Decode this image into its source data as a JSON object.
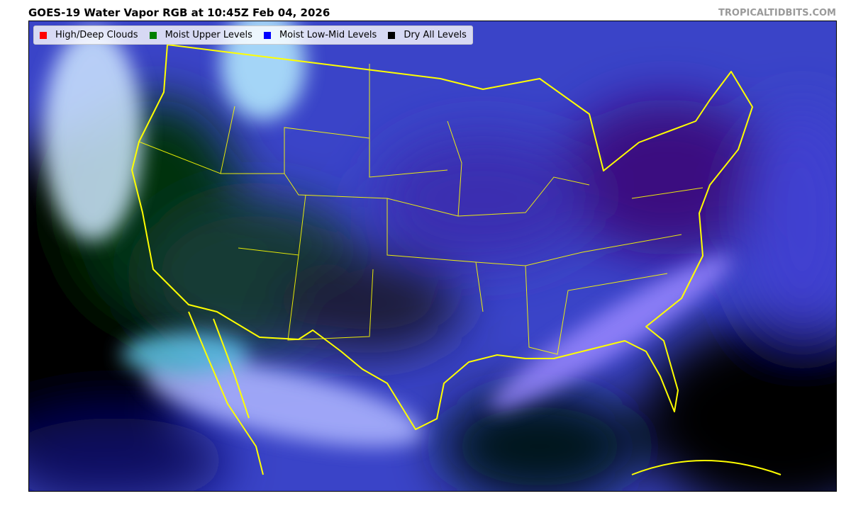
{
  "header": {
    "title": "GOES-19 Water Vapor RGB at 10:45Z Feb 04, 2026",
    "credit": "TROPICALTIDBITS.COM"
  },
  "legend": {
    "items": [
      {
        "label": "High/Deep Clouds",
        "color": "#ff0000"
      },
      {
        "label": "Moist Upper Levels",
        "color": "#008000"
      },
      {
        "label": "Moist Low-Mid Levels",
        "color": "#0000ff"
      },
      {
        "label": "Dry All Levels",
        "color": "#000000"
      }
    ]
  },
  "map": {
    "boundary_color": "#ffff00"
  }
}
